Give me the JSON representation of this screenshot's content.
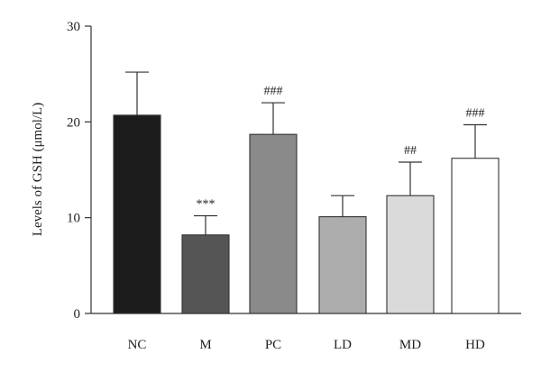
{
  "chart_data": {
    "type": "bar",
    "title": "",
    "xlabel": "",
    "ylabel": "Levels of GSH (μmol/L)",
    "ylim": [
      0,
      30
    ],
    "yticks": [
      0,
      10,
      20,
      30
    ],
    "grid": false,
    "categories": [
      "NC",
      "M",
      "PC",
      "LD",
      "MD",
      "HD"
    ],
    "values": [
      20.7,
      8.2,
      18.7,
      10.1,
      12.3,
      16.2
    ],
    "errors": [
      4.5,
      2.0,
      3.3,
      2.2,
      3.5,
      3.5
    ],
    "significance": [
      "",
      "***",
      "###",
      "",
      "##",
      "###"
    ],
    "colors": [
      "#1c1c1c",
      "#555555",
      "#8a8a8a",
      "#adadad",
      "#dadada",
      "#ffffff"
    ]
  }
}
